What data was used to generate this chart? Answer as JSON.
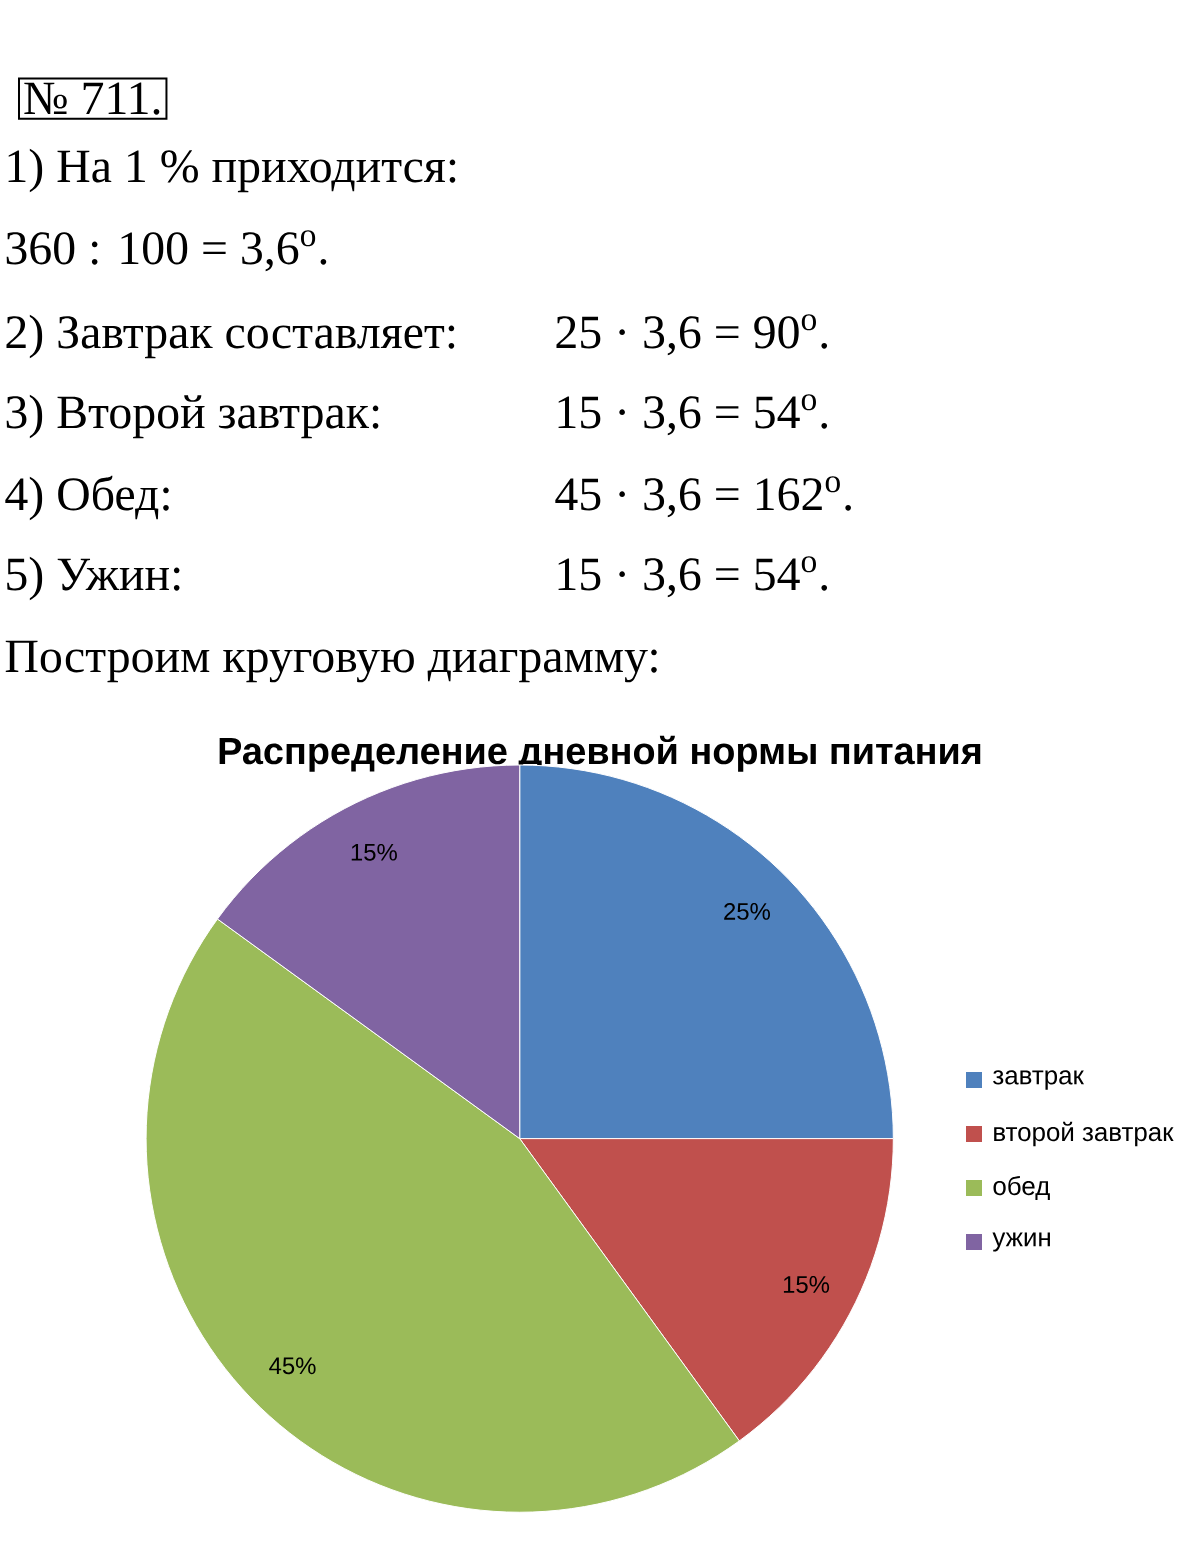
{
  "chart_data": {
    "type": "pie",
    "title": "Распределение дневной нормы питания",
    "categories": [
      "завтрак",
      "второй завтрак",
      "обед",
      "ужин"
    ],
    "values": [
      25,
      15,
      45,
      15
    ],
    "colors": [
      "#4f81bd",
      "#c0504d",
      "#9bbb59",
      "#8064a2"
    ],
    "value_labels": [
      "25%",
      "15%",
      "45%",
      "15%"
    ],
    "legend": "right",
    "annotations": [
      "№ 711.",
      "1) На 1 % приходится:",
      "360 : 100 = 3,6$^{o}$.",
      "2) Завтрак составляет:",
      "25 · 3,6 = 90$^{o}$.",
      "3) Второй завтрак:",
      "15 · 3,6 = 54$^{o}$.",
      "4) Обед:",
      "45 · 3,6 = 162$^{o}$.",
      "5) Ужин:",
      "15 · 3,6 = 54$^{o}$.",
      "Построим круговую диаграмму:"
    ]
  }
}
